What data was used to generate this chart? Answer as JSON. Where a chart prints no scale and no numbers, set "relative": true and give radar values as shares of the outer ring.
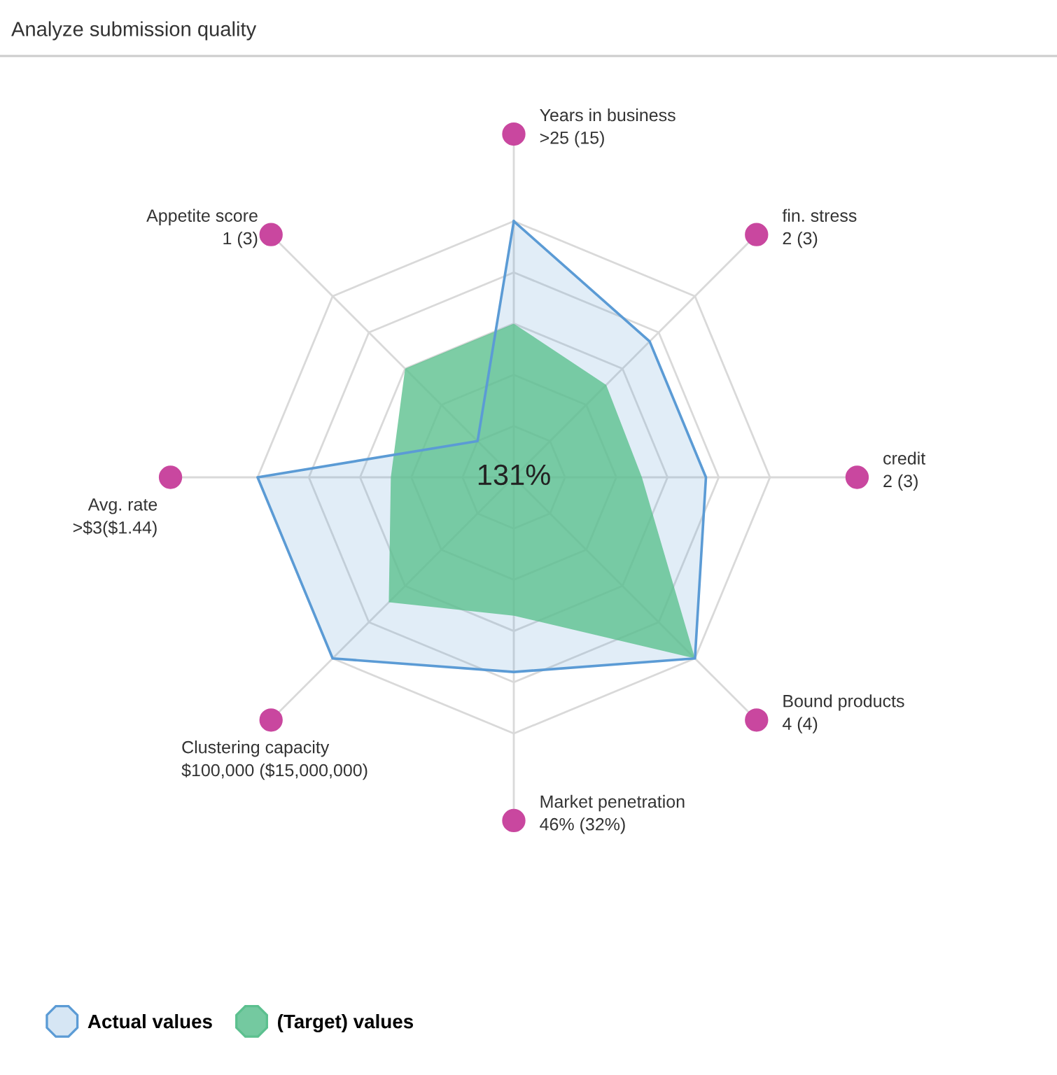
{
  "chart_data": {
    "type": "radar",
    "title": "Analyze submission quality",
    "categories": [
      "Years in business\n>25 (15)",
      "fin. stress\n2 (3)",
      "credit\n2 (3)",
      "Bound products\n4 (4)",
      "Market penetration\n46% (32%)",
      "Clustering capacity\n$100,000 ($15,000,000)",
      "Avg. rate\n>$3($1.44)",
      "Appetite score\n1 (3)"
    ],
    "relative": true,
    "series": [
      {
        "name": "Actual values",
        "color": "#5b9bd5",
        "values": [
          1.0,
          0.75,
          0.75,
          1.0,
          0.76,
          1.0,
          1.0,
          0.2
        ]
      },
      {
        "name": "(Target) values",
        "color": "#5cc08f",
        "values": [
          0.6,
          0.51,
          0.5,
          1.0,
          0.54,
          0.69,
          0.48,
          0.6
        ]
      }
    ],
    "annotations": [
      "131%"
    ],
    "grid": true,
    "legend": "bottom left"
  }
}
